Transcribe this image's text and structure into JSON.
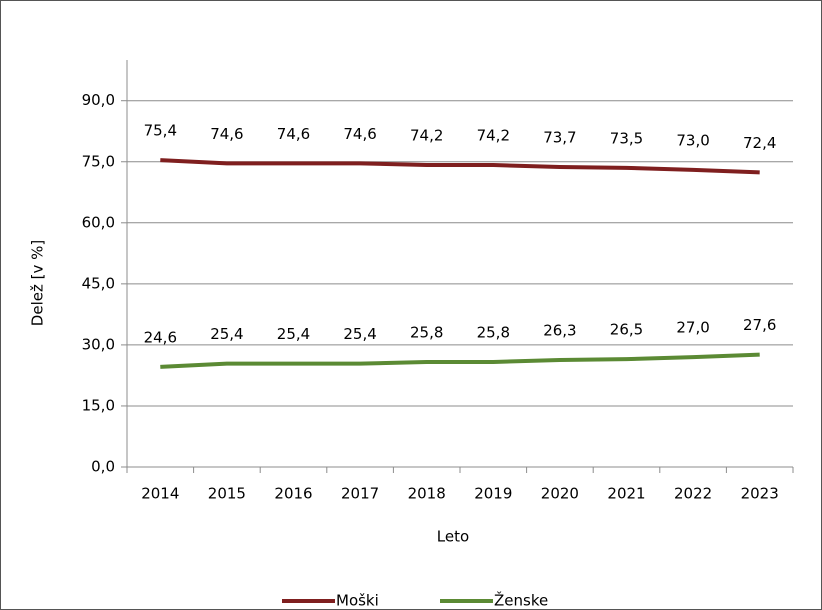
{
  "chart_data": {
    "type": "line",
    "x_label": "Leto",
    "y_label": "Delež [v %]",
    "categories": [
      "2014",
      "2015",
      "2016",
      "2017",
      "2018",
      "2019",
      "2020",
      "2021",
      "2022",
      "2023"
    ],
    "series": [
      {
        "name": "Moški",
        "color": "#7f1f1f",
        "values": [
          75.4,
          74.6,
          74.6,
          74.6,
          74.2,
          74.2,
          73.7,
          73.5,
          73.0,
          72.4
        ],
        "value_labels": [
          "75,4",
          "74,6",
          "74,6",
          "74,6",
          "74,2",
          "74,2",
          "73,7",
          "73,5",
          "73,0",
          "72,4"
        ]
      },
      {
        "name": "Ženske",
        "color": "#5b8a34",
        "values": [
          24.6,
          25.4,
          25.4,
          25.4,
          25.8,
          25.8,
          26.3,
          26.5,
          27.0,
          27.6
        ],
        "value_labels": [
          "24,6",
          "25,4",
          "25,4",
          "25,4",
          "25,8",
          "25,8",
          "26,3",
          "26,5",
          "27,0",
          "27,6"
        ]
      }
    ],
    "ylim": [
      0,
      100
    ],
    "yticks": [
      {
        "value": 0,
        "label": "0,0"
      },
      {
        "value": 15,
        "label": "15,0"
      },
      {
        "value": 30,
        "label": "30,0"
      },
      {
        "value": 45,
        "label": "45,0"
      },
      {
        "value": 60,
        "label": "60,0"
      },
      {
        "value": 75,
        "label": "75,0"
      },
      {
        "value": 90,
        "label": "90,0"
      }
    ],
    "grid": true,
    "legend": "bottom"
  }
}
